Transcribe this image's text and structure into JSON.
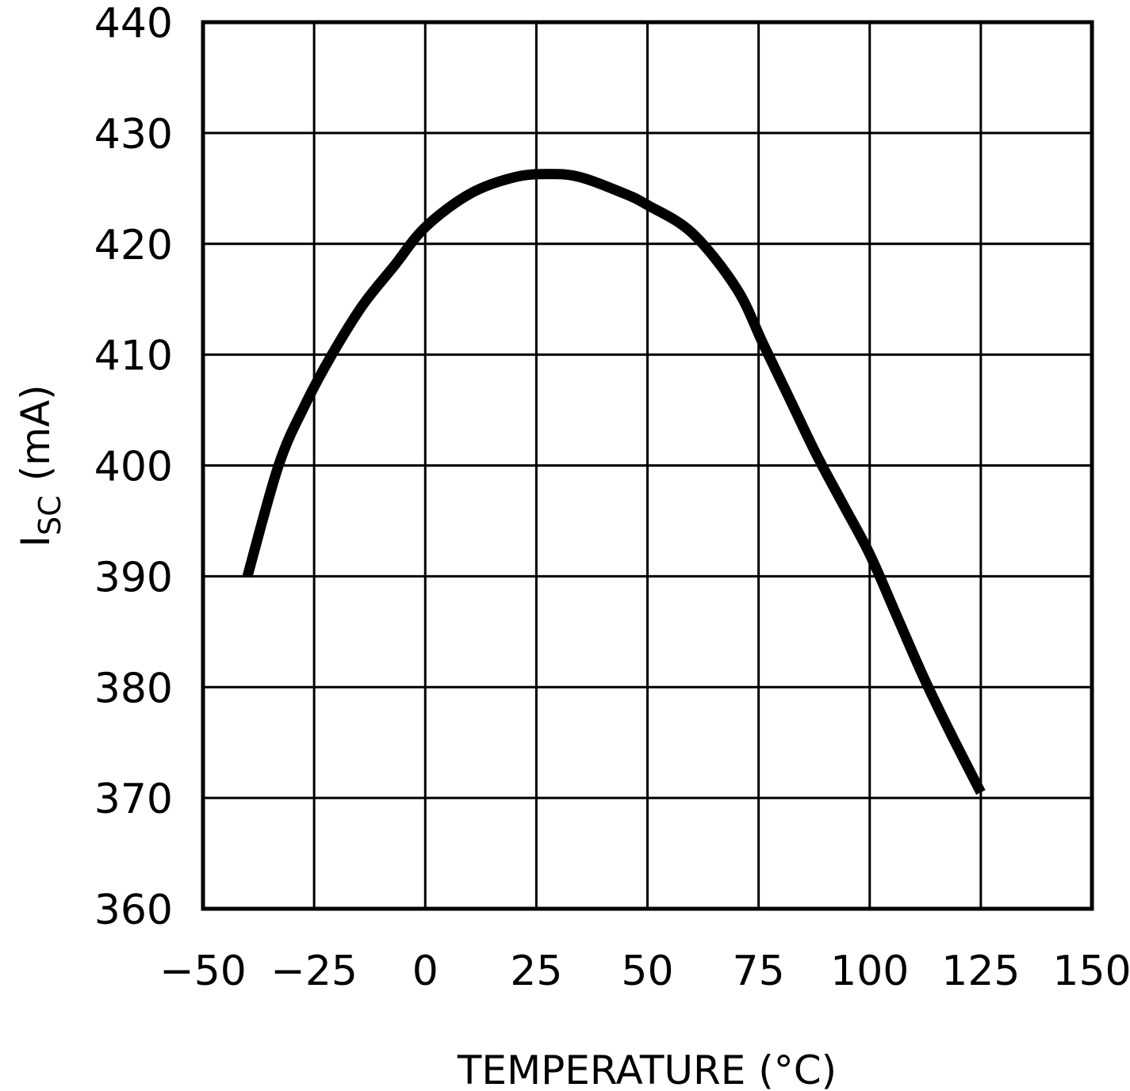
{
  "chart_data": {
    "type": "line",
    "title": "",
    "xlabel": "TEMPERATURE (°C)",
    "ylabel": "I_SC (mA)",
    "ylabel_main": "I",
    "ylabel_sub": "SC",
    "ylabel_unit": "(mA)",
    "xlim": [
      -50,
      150
    ],
    "ylim": [
      360,
      440
    ],
    "grid": true,
    "legend": null,
    "x_ticks": [
      -50,
      -25,
      0,
      25,
      50,
      75,
      100,
      125,
      150
    ],
    "x_tick_labels": [
      "−50",
      "−25",
      "0",
      "25",
      "50",
      "75",
      "100",
      "125",
      "150"
    ],
    "y_ticks": [
      360,
      370,
      380,
      390,
      400,
      410,
      420,
      430,
      440
    ],
    "y_tick_labels": [
      "360",
      "370",
      "380",
      "390",
      "400",
      "410",
      "420",
      "430",
      "440"
    ],
    "series": [
      {
        "name": "I_SC",
        "color": "#000000",
        "x": [
          -40,
          -33,
          -27,
          -21,
          -14,
          -7,
          0,
          10,
          20,
          28,
          35,
          45,
          50,
          60,
          70,
          76,
          82,
          88,
          94,
          100,
          106,
          112,
          118,
          125
        ],
        "y": [
          390,
          400,
          405.5,
          410,
          414.5,
          418,
          421.5,
          424.5,
          426,
          426.3,
          426,
          424.5,
          423.5,
          421,
          416,
          411,
          406,
          401,
          396.5,
          392,
          386.5,
          381,
          376,
          370.5
        ]
      }
    ]
  }
}
